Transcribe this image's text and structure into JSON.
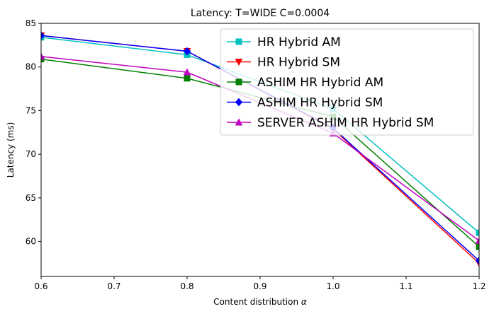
{
  "chart_data": {
    "type": "line",
    "title": "Latency: T=WIDE C=0.0004",
    "xlabel": "Content distribution",
    "xlabel_symbol": "α",
    "ylabel": "Latency (ms)",
    "xlim": [
      0.6,
      1.2
    ],
    "ylim": [
      56,
      85
    ],
    "x_ticks": [
      "0.6",
      "0.7",
      "0.8",
      "0.9",
      "1.0",
      "1.1",
      "1.2"
    ],
    "y_ticks": [
      "60",
      "65",
      "70",
      "75",
      "80",
      "85"
    ],
    "grid": false,
    "legend_position": "top-right",
    "x": [
      0.6,
      0.8,
      1.0,
      1.2
    ],
    "series": [
      {
        "name": "HR Hybrid AM",
        "color": "#00bfbf",
        "marker": "square",
        "values": [
          83.4,
          81.4,
          75.2,
          61.0
        ]
      },
      {
        "name": "HR Hybrid SM",
        "color": "#ff0000",
        "marker": "triangle-down",
        "values": [
          83.6,
          81.8,
          72.9,
          57.5
        ]
      },
      {
        "name": "ASHIM HR Hybrid AM",
        "color": "#008000",
        "marker": "square",
        "values": [
          80.9,
          78.7,
          74.3,
          59.4
        ]
      },
      {
        "name": "ASHIM HR Hybrid SM",
        "color": "#0000ff",
        "marker": "diamond",
        "values": [
          83.6,
          81.8,
          73.0,
          57.8
        ]
      },
      {
        "name": "SERVER ASHIM HR Hybrid SM",
        "color": "#bf00bf",
        "marker": "triangle-up",
        "values": [
          81.2,
          79.4,
          72.4,
          60.1
        ]
      }
    ]
  }
}
